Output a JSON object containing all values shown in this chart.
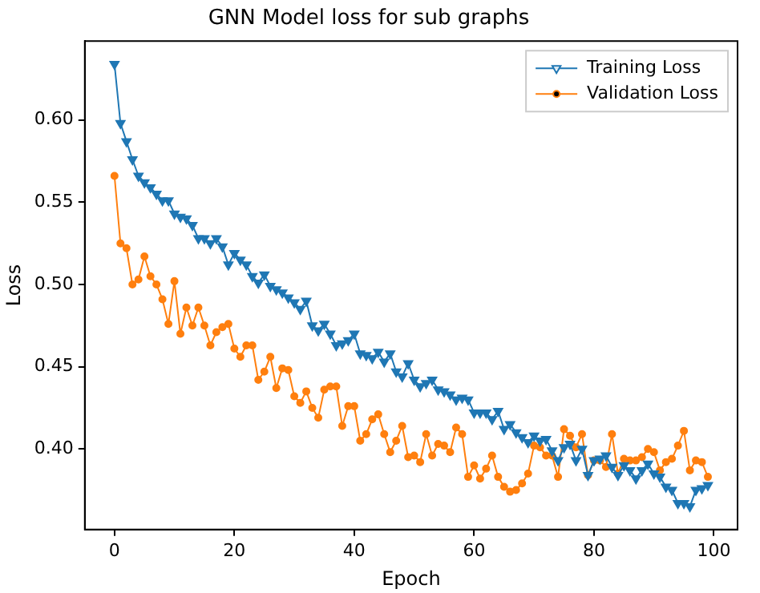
{
  "chart_data": {
    "type": "line",
    "title": "GNN Model loss for sub graphs",
    "xlabel": "Epoch",
    "ylabel": "Loss",
    "x": [
      0,
      1,
      2,
      3,
      4,
      5,
      6,
      7,
      8,
      9,
      10,
      11,
      12,
      13,
      14,
      15,
      16,
      17,
      18,
      19,
      20,
      21,
      22,
      23,
      24,
      25,
      26,
      27,
      28,
      29,
      30,
      31,
      32,
      33,
      34,
      35,
      36,
      37,
      38,
      39,
      40,
      41,
      42,
      43,
      44,
      45,
      46,
      47,
      48,
      49,
      50,
      51,
      52,
      53,
      54,
      55,
      56,
      57,
      58,
      59,
      60,
      61,
      62,
      63,
      64,
      65,
      66,
      67,
      68,
      69,
      70,
      71,
      72,
      73,
      74,
      75,
      76,
      77,
      78,
      79,
      80,
      81,
      82,
      83,
      84,
      85,
      86,
      87,
      88,
      89,
      90,
      91,
      92,
      93,
      94,
      95,
      96,
      97,
      98,
      99
    ],
    "series": [
      {
        "name": "Training Loss",
        "color": "#1f77b4",
        "marker": "triangle",
        "values": [
          0.634,
          0.598,
          0.587,
          0.576,
          0.566,
          0.562,
          0.559,
          0.555,
          0.551,
          0.551,
          0.543,
          0.541,
          0.54,
          0.536,
          0.528,
          0.528,
          0.525,
          0.528,
          0.523,
          0.512,
          0.519,
          0.515,
          0.512,
          0.505,
          0.501,
          0.506,
          0.499,
          0.497,
          0.495,
          0.492,
          0.489,
          0.485,
          0.49,
          0.475,
          0.472,
          0.476,
          0.47,
          0.463,
          0.464,
          0.466,
          0.47,
          0.458,
          0.457,
          0.455,
          0.459,
          0.453,
          0.458,
          0.447,
          0.444,
          0.452,
          0.442,
          0.438,
          0.44,
          0.442,
          0.436,
          0.435,
          0.433,
          0.43,
          0.431,
          0.43,
          0.422,
          0.422,
          0.422,
          0.418,
          0.423,
          0.412,
          0.415,
          0.41,
          0.407,
          0.404,
          0.408,
          0.405,
          0.406,
          0.399,
          0.393,
          0.401,
          0.403,
          0.393,
          0.4,
          0.384,
          0.393,
          0.394,
          0.396,
          0.389,
          0.384,
          0.39,
          0.387,
          0.382,
          0.387,
          0.391,
          0.385,
          0.383,
          0.377,
          0.375,
          0.367,
          0.367,
          0.365,
          0.375,
          0.376,
          0.378
        ]
      },
      {
        "name": "Validation Loss",
        "color": "#ff7f0e",
        "marker": "circle",
        "values": [
          0.566,
          0.525,
          0.522,
          0.5,
          0.503,
          0.517,
          0.505,
          0.5,
          0.491,
          0.476,
          0.502,
          0.47,
          0.486,
          0.475,
          0.486,
          0.475,
          0.463,
          0.471,
          0.474,
          0.476,
          0.461,
          0.456,
          0.463,
          0.463,
          0.442,
          0.447,
          0.456,
          0.437,
          0.449,
          0.448,
          0.432,
          0.428,
          0.435,
          0.425,
          0.419,
          0.436,
          0.438,
          0.438,
          0.414,
          0.426,
          0.426,
          0.405,
          0.409,
          0.418,
          0.421,
          0.409,
          0.398,
          0.405,
          0.414,
          0.395,
          0.396,
          0.392,
          0.409,
          0.396,
          0.403,
          0.402,
          0.398,
          0.413,
          0.409,
          0.383,
          0.39,
          0.382,
          0.388,
          0.396,
          0.383,
          0.377,
          0.374,
          0.375,
          0.379,
          0.385,
          0.402,
          0.401,
          0.396,
          0.396,
          0.383,
          0.412,
          0.408,
          0.401,
          0.409,
          0.384,
          0.393,
          0.393,
          0.389,
          0.409,
          0.385,
          0.394,
          0.393,
          0.393,
          0.395,
          0.4,
          0.398,
          0.387,
          0.392,
          0.394,
          0.402,
          0.411,
          0.387,
          0.393,
          0.392,
          0.383
        ]
      }
    ],
    "xlim": [
      -4.95,
      103.95
    ],
    "ylim": [
      0.351,
      0.648
    ],
    "xticks": [
      0,
      20,
      40,
      60,
      80,
      100
    ],
    "yticks": [
      {
        "value": 0.4,
        "label": "0.40"
      },
      {
        "value": 0.45,
        "label": "0.45"
      },
      {
        "value": 0.5,
        "label": "0.50"
      },
      {
        "value": 0.55,
        "label": "0.55"
      },
      {
        "value": 0.6,
        "label": "0.60"
      }
    ],
    "grid": false,
    "legend": "top right",
    "line_style": "solid"
  }
}
